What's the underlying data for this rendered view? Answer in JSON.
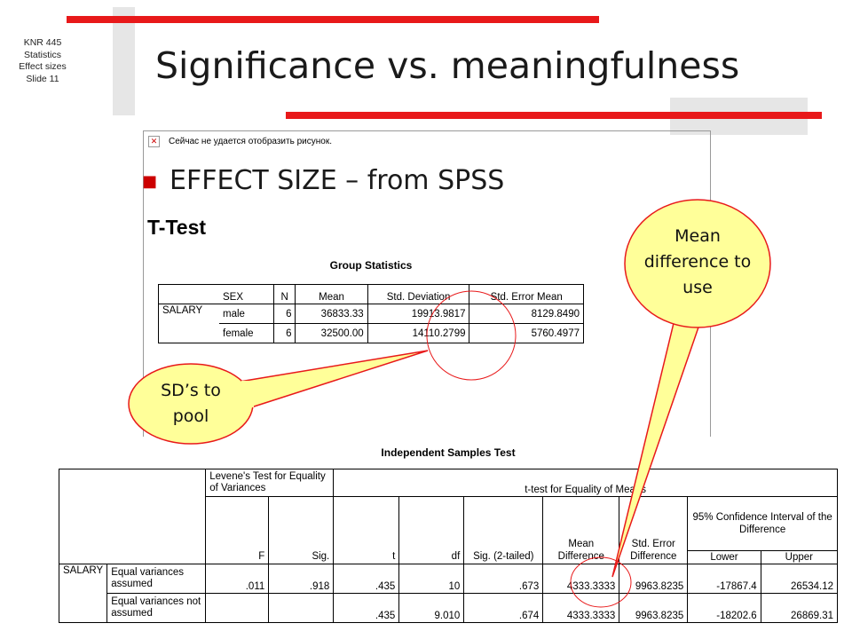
{
  "sidebar": [
    "KNR 445",
    "Statistics",
    "Effect sizes",
    "Slide 11"
  ],
  "title": "Significance vs. meaningfulness",
  "bullet": "EFFECT SIZE – from SPSS",
  "image_error": "Сейчас не удается отобразить рисунок.",
  "spss_heading": "T-Test",
  "group_statistics": {
    "title": "Group Statistics",
    "columns": [
      "SEX",
      "N",
      "Mean",
      "Std. Deviation",
      "Std. Error Mean"
    ],
    "variable": "SALARY",
    "rows": [
      [
        "male",
        "6",
        "36833.33",
        "19913.9817",
        "8129.8490"
      ],
      [
        "female",
        "6",
        "32500.00",
        "14110.2799",
        "5760.4977"
      ]
    ]
  },
  "independent_samples_test": {
    "title": "Independent Samples Test",
    "levene_header": "Levene's Test for Equality of Variances",
    "ttest_header": "t-test for Equality of Means",
    "ci_header": "95% Confidence Interval of the Difference",
    "columns": [
      "F",
      "Sig.",
      "t",
      "df",
      "Sig. (2-tailed)",
      "Mean Difference",
      "Std. Error Difference",
      "Lower",
      "Upper"
    ],
    "variable": "SALARY",
    "rows": [
      {
        "label": "Equal variances assumed",
        "cells": [
          ".011",
          ".918",
          ".435",
          "10",
          ".673",
          "4333.3333",
          "9963.8235",
          "-17867.4",
          "26534.12"
        ]
      },
      {
        "label": "Equal variances not assumed",
        "cells": [
          null,
          null,
          ".435",
          "9.010",
          ".674",
          "4333.3333",
          "9963.8235",
          "-18202.6",
          "26869.31"
        ]
      }
    ]
  },
  "callouts": {
    "mean_difference": "Mean difference to use",
    "sd_pool": "SD’s to pool"
  }
}
